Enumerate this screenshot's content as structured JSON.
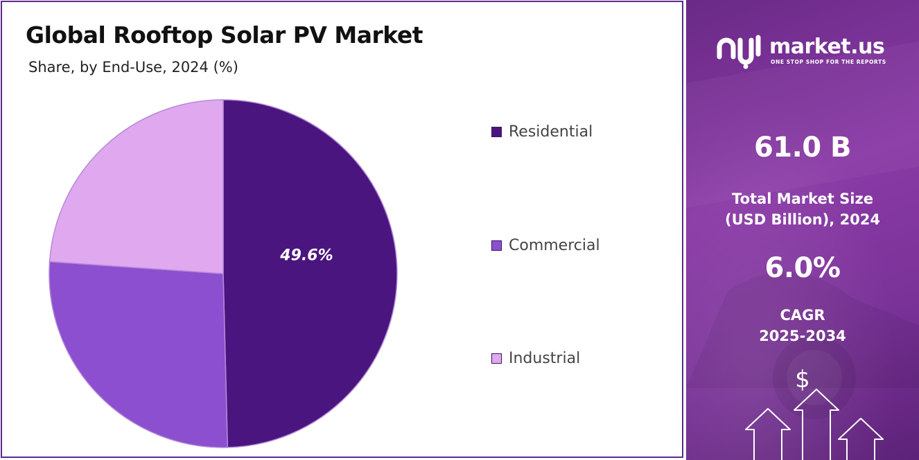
{
  "header": {
    "title": "Global Rooftop Solar PV Market",
    "subtitle": "Share, by End-Use, 2024 (%)"
  },
  "chart_data": {
    "type": "pie",
    "title": "Global Rooftop Solar PV Market",
    "subtitle": "Share, by End-Use, 2024 (%)",
    "categories": [
      "Residential",
      "Commercial",
      "Industrial"
    ],
    "values": [
      49.6,
      26.5,
      23.9
    ],
    "colors": [
      "#4b1580",
      "#8b4fd0",
      "#e0a8ee"
    ],
    "data_labels": [
      "49.6%",
      "",
      ""
    ],
    "legend_placement": "right",
    "start_angle_deg": 0,
    "direction": "clockwise"
  },
  "brand": {
    "name": "market.us",
    "tagline": "ONE STOP SHOP FOR THE REPORTS",
    "logo_icon": "market-us-logo-icon"
  },
  "stats": {
    "market_size_value": "61.0 B",
    "market_size_label_line1": "Total Market Size",
    "market_size_label_line2": "(USD Billion), 2024",
    "cagr_value": "6.0%",
    "cagr_label_line1": "CAGR",
    "cagr_label_line2": "2025-2034"
  },
  "decor": {
    "currency_symbol": "$",
    "arrow_icon": "up-arrow-icon"
  },
  "colors": {
    "frame_border": "#5a2a8c",
    "panel_accent": "#7a3298"
  }
}
